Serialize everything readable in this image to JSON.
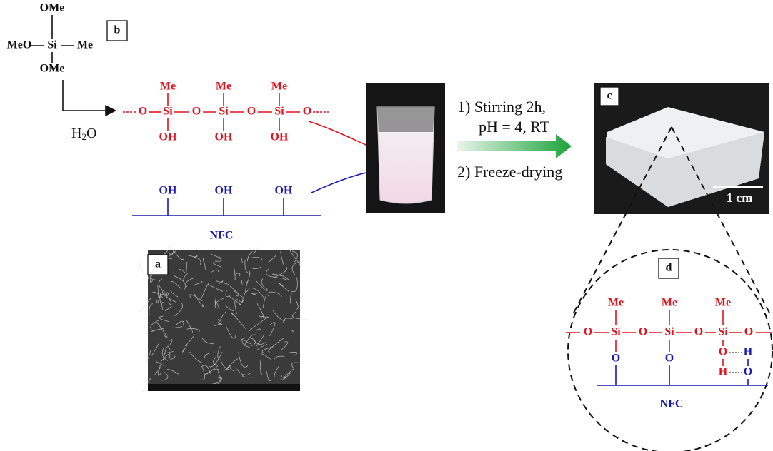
{
  "panels": {
    "a": "a",
    "b": "b",
    "c": "c",
    "d": "d"
  },
  "precursor": {
    "top": "OMe",
    "left": "MeO",
    "center": "Si",
    "right": "Me",
    "bottom": "OMe"
  },
  "reagent": {
    "main": "H",
    "sub": "2",
    "end": "O"
  },
  "silanol_chain": {
    "methyls": [
      "Me",
      "Me",
      "Me"
    ],
    "atoms": [
      "O",
      "Si",
      "O",
      "Si",
      "O",
      "Si",
      "O"
    ],
    "hydroxyls": [
      "OH",
      "OH",
      "OH"
    ]
  },
  "nfc": {
    "hydroxyls": [
      "OH",
      "OH",
      "OH"
    ],
    "label": "NFC"
  },
  "process": {
    "step1_line1": "1) Stirring 2h,",
    "step1_line2": "pH = 4, RT",
    "step2": "2) Freeze-drying"
  },
  "photo": {
    "scale_bar": "1 cm"
  },
  "hybrid": {
    "methyls": [
      "Me",
      "Me",
      "Me"
    ],
    "atoms": [
      "O",
      "Si",
      "O",
      "Si",
      "O",
      "Si",
      "O"
    ],
    "bonds": [
      "O",
      "O",
      "O",
      "H",
      "H",
      "O"
    ],
    "label": "NFC"
  }
}
